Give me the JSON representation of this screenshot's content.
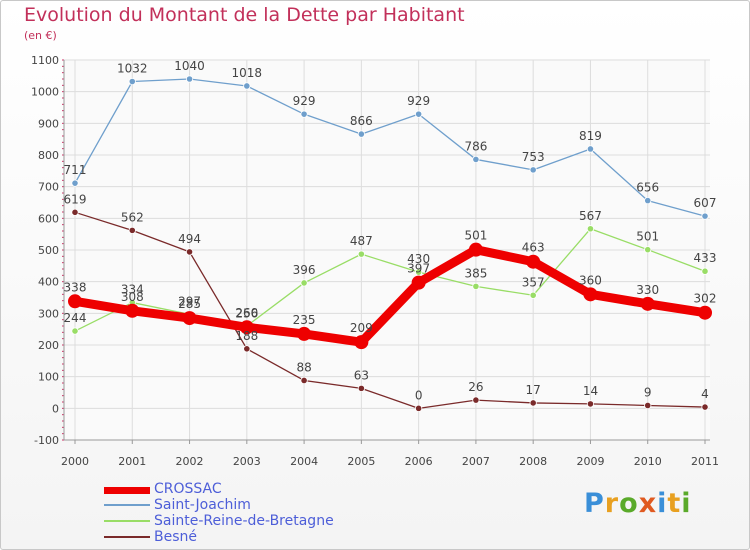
{
  "title": "Evolution du Montant de la Dette par Habitant",
  "unit": "(en €)",
  "logo": "Proxiti",
  "chart_data": {
    "type": "line",
    "title": "Evolution du Montant de la Dette par Habitant",
    "ylabel": "(en €)",
    "x": [
      "2000",
      "2001",
      "2002",
      "2003",
      "2004",
      "2005",
      "2006",
      "2007",
      "2008",
      "2009",
      "2010",
      "2011"
    ],
    "ylim": [
      -100,
      1100
    ],
    "yticks": [
      "-100",
      "0",
      "100",
      "200",
      "300",
      "400",
      "500",
      "600",
      "700",
      "800",
      "900",
      "1000",
      "1100"
    ],
    "grid": true,
    "legend_position": "bottom-left",
    "series": [
      {
        "name": "CROSSAC",
        "color": "#ee0000",
        "values": [
          338,
          308,
          285,
          256,
          235,
          209,
          397,
          501,
          463,
          360,
          330,
          302
        ]
      },
      {
        "name": "Saint-Joachim",
        "color": "#6f9fcc",
        "values": [
          711,
          1032,
          1040,
          1018,
          929,
          866,
          929,
          786,
          753,
          819,
          656,
          607
        ]
      },
      {
        "name": "Sainte-Reine-de-Bretagne",
        "color": "#99dd66",
        "values": [
          244,
          334,
          297,
          260,
          396,
          487,
          430,
          385,
          357,
          567,
          501,
          433
        ]
      },
      {
        "name": "Besné",
        "color": "#7a2a2a",
        "values": [
          619,
          562,
          494,
          188,
          88,
          63,
          0,
          26,
          17,
          14,
          9,
          4
        ]
      }
    ]
  }
}
